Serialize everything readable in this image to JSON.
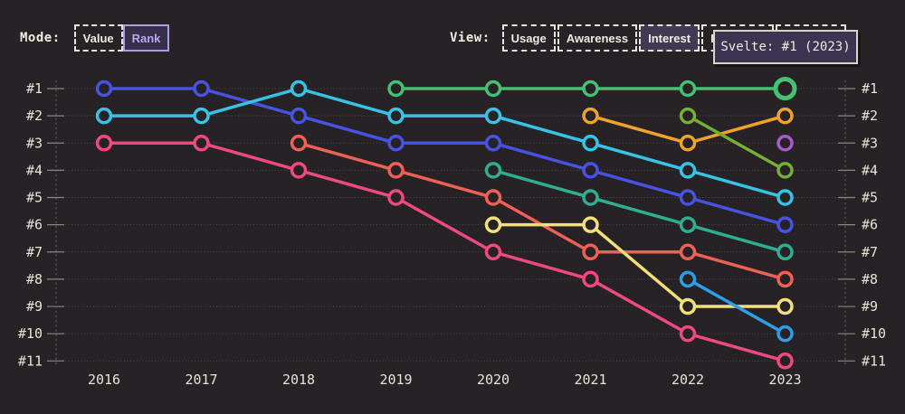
{
  "app": {
    "background": "#262226"
  },
  "controls": {
    "mode": {
      "label": "Mode:",
      "options": [
        {
          "label": "Value",
          "selected": false
        },
        {
          "label": "Rank",
          "selected": true
        }
      ]
    },
    "view": {
      "label": "View:",
      "options": [
        {
          "label": "Usage",
          "selected": false
        },
        {
          "label": "Awareness",
          "selected": false
        },
        {
          "label": "Interest",
          "selected": true
        },
        {
          "label": "Retention",
          "selected": false
        },
        {
          "label": "Positivity",
          "selected": false
        }
      ]
    }
  },
  "tooltip": {
    "text": "Svelte: #1 (2023)"
  },
  "chart_data": {
    "type": "line",
    "variant": "rank-bump",
    "x": [
      2016,
      2017,
      2018,
      2019,
      2020,
      2021,
      2022,
      2023
    ],
    "y_axis": {
      "labels": [
        "#1",
        "#2",
        "#3",
        "#4",
        "#5",
        "#6",
        "#7",
        "#8",
        "#9",
        "#10",
        "#11"
      ],
      "label_sides": [
        "left",
        "right"
      ],
      "direction": "rank-1-at-top",
      "grid": "dotted"
    },
    "series": [
      {
        "name": "indigo-line",
        "color": "#4853e2",
        "ranks": [
          1,
          1,
          2,
          3,
          3,
          4,
          5,
          6
        ]
      },
      {
        "name": "cyan-line",
        "color": "#3ac2e6",
        "ranks": [
          2,
          2,
          1,
          2,
          2,
          3,
          4,
          5
        ]
      },
      {
        "name": "magenta-line",
        "color": "#ee4a7e",
        "ranks": [
          3,
          3,
          4,
          5,
          7,
          8,
          10,
          11
        ]
      },
      {
        "name": "coral-line",
        "color": "#ee6157",
        "ranks": [
          null,
          null,
          3,
          4,
          5,
          7,
          7,
          8
        ]
      },
      {
        "name": "Svelte",
        "color": "#45c171",
        "ranks": [
          null,
          null,
          null,
          1,
          1,
          1,
          1,
          1
        ]
      },
      {
        "name": "teal-line",
        "color": "#2fae92",
        "ranks": [
          null,
          null,
          null,
          null,
          4,
          5,
          6,
          7
        ]
      },
      {
        "name": "yellow-line",
        "color": "#f3e07b",
        "ranks": [
          null,
          null,
          null,
          null,
          6,
          6,
          9,
          9
        ]
      },
      {
        "name": "amber-line",
        "color": "#efa32c",
        "ranks": [
          null,
          null,
          null,
          null,
          null,
          2,
          3,
          2
        ]
      },
      {
        "name": "olive-line",
        "color": "#74af37",
        "ranks": [
          null,
          null,
          null,
          null,
          null,
          null,
          2,
          4
        ]
      },
      {
        "name": "sky-line",
        "color": "#2e9ee6",
        "ranks": [
          null,
          null,
          null,
          null,
          null,
          null,
          8,
          10
        ]
      },
      {
        "name": "purple-line",
        "color": "#a55cc6",
        "ranks": [
          null,
          null,
          null,
          null,
          null,
          null,
          null,
          3
        ]
      }
    ],
    "highlight": {
      "series": "Svelte",
      "year": 2023,
      "rank": 1
    }
  }
}
